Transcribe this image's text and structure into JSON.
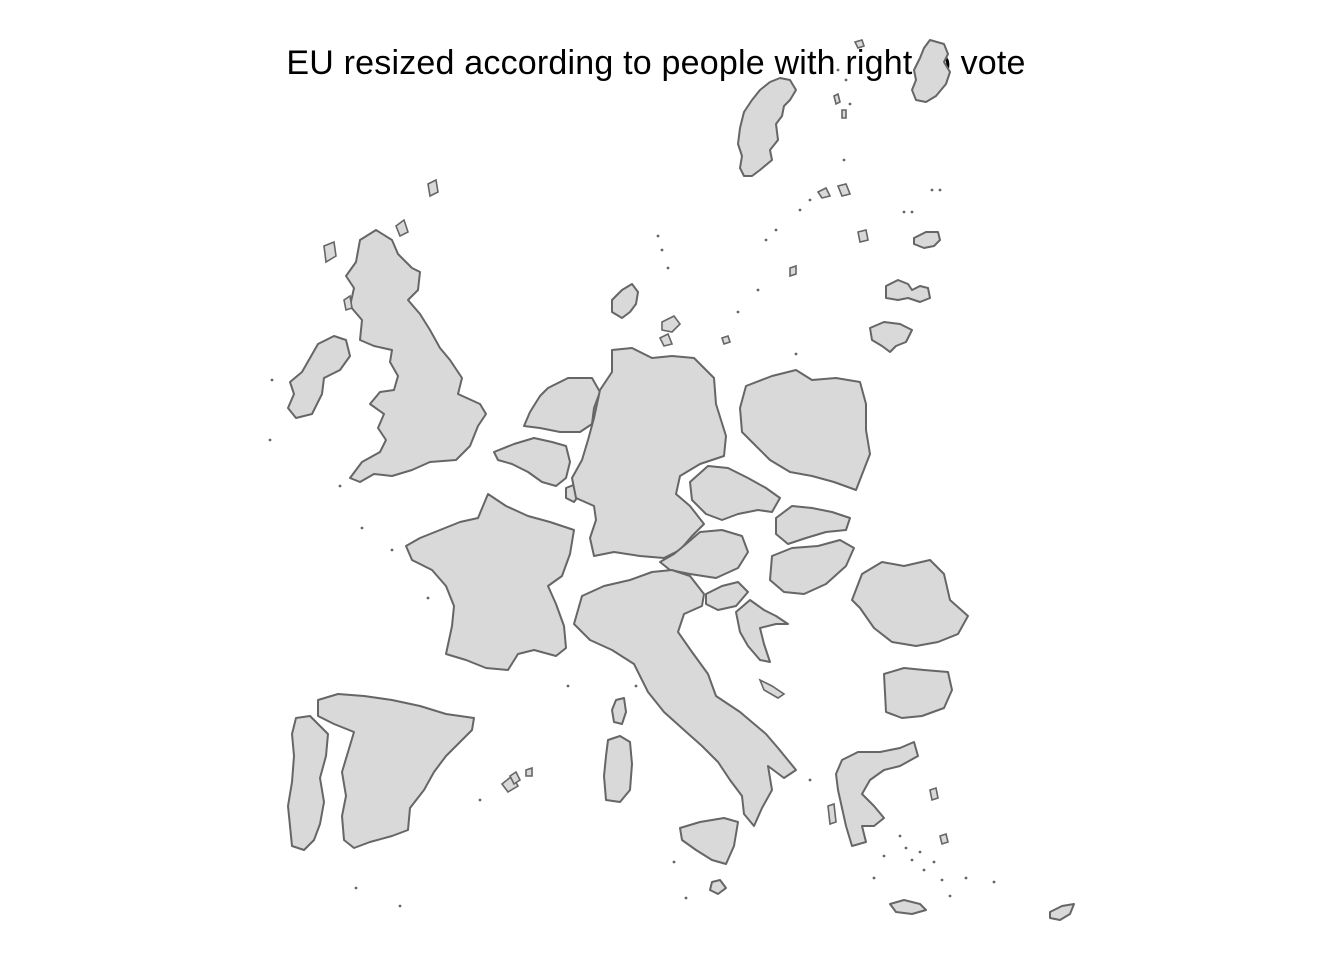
{
  "title": "EU resized according to people with right to vote",
  "colors": {
    "fill": "#d9d9d9",
    "stroke": "#666666",
    "background": "#ffffff"
  },
  "countries": [
    "Sweden",
    "Finland",
    "Estonia",
    "Latvia",
    "Lithuania",
    "Denmark",
    "United Kingdom",
    "Ireland",
    "Netherlands",
    "Belgium",
    "Luxembourg",
    "Germany",
    "Poland",
    "Czech Republic",
    "Slovakia",
    "Austria",
    "Hungary",
    "Slovenia",
    "Croatia",
    "Romania",
    "Bulgaria",
    "France",
    "Italy",
    "Spain",
    "Portugal",
    "Greece",
    "Malta",
    "Cyprus"
  ]
}
